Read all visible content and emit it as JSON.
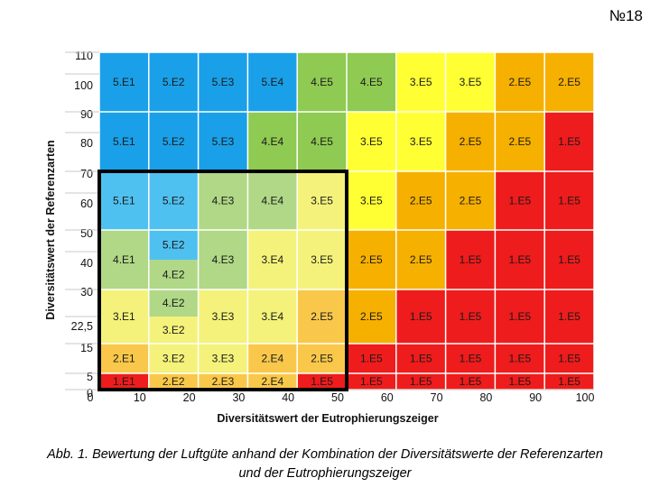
{
  "page_number": "№18",
  "caption": {
    "line1": "Abb. 1. Bewertung der Luftgüte anhand der Kombination der Diversitätswerte der Referenzarten",
    "line2": "und der Eutrophierungszeiger"
  },
  "colors": {
    "class1": "#ee1c1c",
    "class2": "#f6b000",
    "class2_light": "#f9c84a",
    "class3": "#ffff33",
    "class3_light": "#f4f27a",
    "class4": "#8fca52",
    "class4_light": "#b0d887",
    "class5": "#1aa0e8",
    "class5_light": "#4fc1f0",
    "highlight_border": "#000000",
    "grid": "#ffffff"
  },
  "chart_data": {
    "type": "heatmap",
    "xlabel": "Diversitätswert der Eutrophierungszeiger",
    "ylabel": "Diversitätswert der Referenzarten",
    "x_ticks": [
      "0",
      "10",
      "20",
      "30",
      "40",
      "50",
      "60",
      "70",
      "80",
      "90",
      "100"
    ],
    "y_ticks_left": [
      "110",
      "100",
      "90",
      "80",
      "70",
      "60",
      "50",
      "40",
      "30",
      "22,5",
      "15",
      "5",
      "0"
    ],
    "x_bands": [
      [
        0,
        10
      ],
      [
        10,
        20
      ],
      [
        20,
        30
      ],
      [
        30,
        40
      ],
      [
        40,
        50
      ],
      [
        50,
        60
      ],
      [
        60,
        70
      ],
      [
        70,
        80
      ],
      [
        80,
        90
      ],
      [
        90,
        100
      ]
    ],
    "rows": [
      {
        "y": [
          100,
          110
        ],
        "cells": [
          {
            "label": "5.E1",
            "color": "class5"
          },
          {
            "label": "5.E2",
            "color": "class5"
          },
          {
            "label": "5.E3",
            "color": "class5"
          },
          {
            "label": "5.E4",
            "color": "class5"
          },
          {
            "label": "4.E5",
            "color": "class4"
          },
          {
            "label": "4.E5",
            "color": "class4"
          },
          {
            "label": "3.E5",
            "color": "class3"
          },
          {
            "label": "3.E5",
            "color": "class3"
          },
          {
            "label": "2.E5",
            "color": "class2"
          },
          {
            "label": "2.E5",
            "color": "class2"
          }
        ]
      },
      {
        "y": [
          80,
          90
        ],
        "cells": [
          {
            "label": "5.E1",
            "color": "class5"
          },
          {
            "label": "5.E2",
            "color": "class5"
          },
          {
            "label": "5.E3",
            "color": "class5"
          },
          {
            "label": "4.E4",
            "color": "class4"
          },
          {
            "label": "4.E5",
            "color": "class4"
          },
          {
            "label": "3.E5",
            "color": "class3"
          },
          {
            "label": "3.E5",
            "color": "class3"
          },
          {
            "label": "2.E5",
            "color": "class2"
          },
          {
            "label": "2.E5",
            "color": "class2"
          },
          {
            "label": "1.E5",
            "color": "class1"
          }
        ]
      },
      {
        "y": [
          60,
          70
        ],
        "cells": [
          {
            "label": "5.E1",
            "color": "class5_light"
          },
          {
            "label": "5.E2",
            "color": "class5_light"
          },
          {
            "label": "4.E3",
            "color": "class4_light"
          },
          {
            "label": "4.E4",
            "color": "class4_light"
          },
          {
            "label": "3.E5",
            "color": "class3_light"
          },
          {
            "label": "3.E5",
            "color": "class3"
          },
          {
            "label": "2.E5",
            "color": "class2"
          },
          {
            "label": "2.E5",
            "color": "class2"
          },
          {
            "label": "1.E5",
            "color": "class1"
          },
          {
            "label": "1.E5",
            "color": "class1"
          }
        ]
      },
      {
        "y": [
          40,
          50
        ],
        "cells": [
          {
            "label": "4.E1",
            "color": "class4_light"
          },
          {
            "label": "5.E2|4.E2",
            "color": "class5_light|class4_light"
          },
          {
            "label": "4.E3",
            "color": "class4_light"
          },
          {
            "label": "3.E4",
            "color": "class3_light"
          },
          {
            "label": "3.E5",
            "color": "class3_light"
          },
          {
            "label": "2.E5",
            "color": "class2"
          },
          {
            "label": "2.E5",
            "color": "class2"
          },
          {
            "label": "1.E5",
            "color": "class1"
          },
          {
            "label": "1.E5",
            "color": "class1"
          },
          {
            "label": "1.E5",
            "color": "class1"
          }
        ]
      },
      {
        "y": [
          22.5,
          30
        ],
        "cells": [
          {
            "label": "3.E1",
            "color": "class3_light"
          },
          {
            "label": "4.E2|3.E2",
            "color": "class4_light|class3_light"
          },
          {
            "label": "3.E3",
            "color": "class3_light"
          },
          {
            "label": "3.E4",
            "color": "class3_light"
          },
          {
            "label": "2.E5",
            "color": "class2_light"
          },
          {
            "label": "2.E5",
            "color": "class2"
          },
          {
            "label": "1.E5",
            "color": "class1"
          },
          {
            "label": "1.E5",
            "color": "class1"
          },
          {
            "label": "1.E5",
            "color": "class1"
          },
          {
            "label": "1.E5",
            "color": "class1"
          }
        ]
      },
      {
        "y": [
          5,
          15
        ],
        "cells": [
          {
            "label": "2.E1",
            "color": "class2_light"
          },
          {
            "label": "3.E2",
            "color": "class3_light"
          },
          {
            "label": "3.E3",
            "color": "class3_light"
          },
          {
            "label": "2.E4",
            "color": "class2_light"
          },
          {
            "label": "2.E5",
            "color": "class2_light"
          },
          {
            "label": "1.E5",
            "color": "class1"
          },
          {
            "label": "1.E5",
            "color": "class1"
          },
          {
            "label": "1.E5",
            "color": "class1"
          },
          {
            "label": "1.E5",
            "color": "class1"
          },
          {
            "label": "1.E5",
            "color": "class1"
          }
        ]
      },
      {
        "y": [
          0,
          5
        ],
        "cells": [
          {
            "label": "1.E1",
            "color": "class1"
          },
          {
            "label": "2.E2",
            "color": "class2_light"
          },
          {
            "label": "2.E3",
            "color": "class2_light"
          },
          {
            "label": "2.E4",
            "color": "class2_light"
          },
          {
            "label": "1.E5",
            "color": "class1"
          },
          {
            "label": "1.E5",
            "color": "class1"
          },
          {
            "label": "1.E5",
            "color": "class1"
          },
          {
            "label": "1.E5",
            "color": "class1"
          },
          {
            "label": "1.E5",
            "color": "class1"
          },
          {
            "label": "1.E5",
            "color": "class1"
          }
        ]
      }
    ],
    "highlight_region": {
      "x": [
        0,
        50
      ],
      "y": [
        0,
        70
      ]
    }
  }
}
